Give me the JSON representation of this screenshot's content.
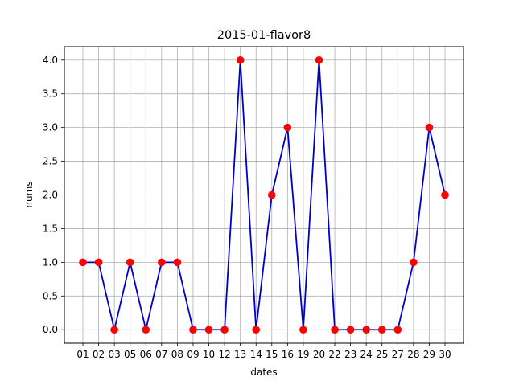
{
  "chart_data": {
    "type": "line",
    "title": "2015-01-flavor8",
    "xlabel": "dates",
    "ylabel": "nums",
    "categories": [
      "01",
      "02",
      "03",
      "05",
      "06",
      "07",
      "08",
      "09",
      "10",
      "12",
      "13",
      "14",
      "15",
      "16",
      "19",
      "20",
      "22",
      "23",
      "24",
      "25",
      "27",
      "28",
      "29",
      "30"
    ],
    "values": [
      1,
      1,
      0,
      1,
      0,
      1,
      1,
      0,
      0,
      0,
      4,
      0,
      2,
      3,
      0,
      4,
      0,
      0,
      0,
      0,
      0,
      1,
      3,
      2
    ],
    "ylim": [
      -0.2,
      4.2
    ],
    "yticks": [
      0.0,
      0.5,
      1.0,
      1.5,
      2.0,
      2.5,
      3.0,
      3.5,
      4.0
    ],
    "ytick_labels": [
      "0.0",
      "0.5",
      "1.0",
      "1.5",
      "2.0",
      "2.5",
      "3.0",
      "3.5",
      "4.0"
    ],
    "grid": true,
    "line_color": "#0000cc",
    "marker_color": "#ff0000",
    "grid_color": "#b0b0b0"
  }
}
